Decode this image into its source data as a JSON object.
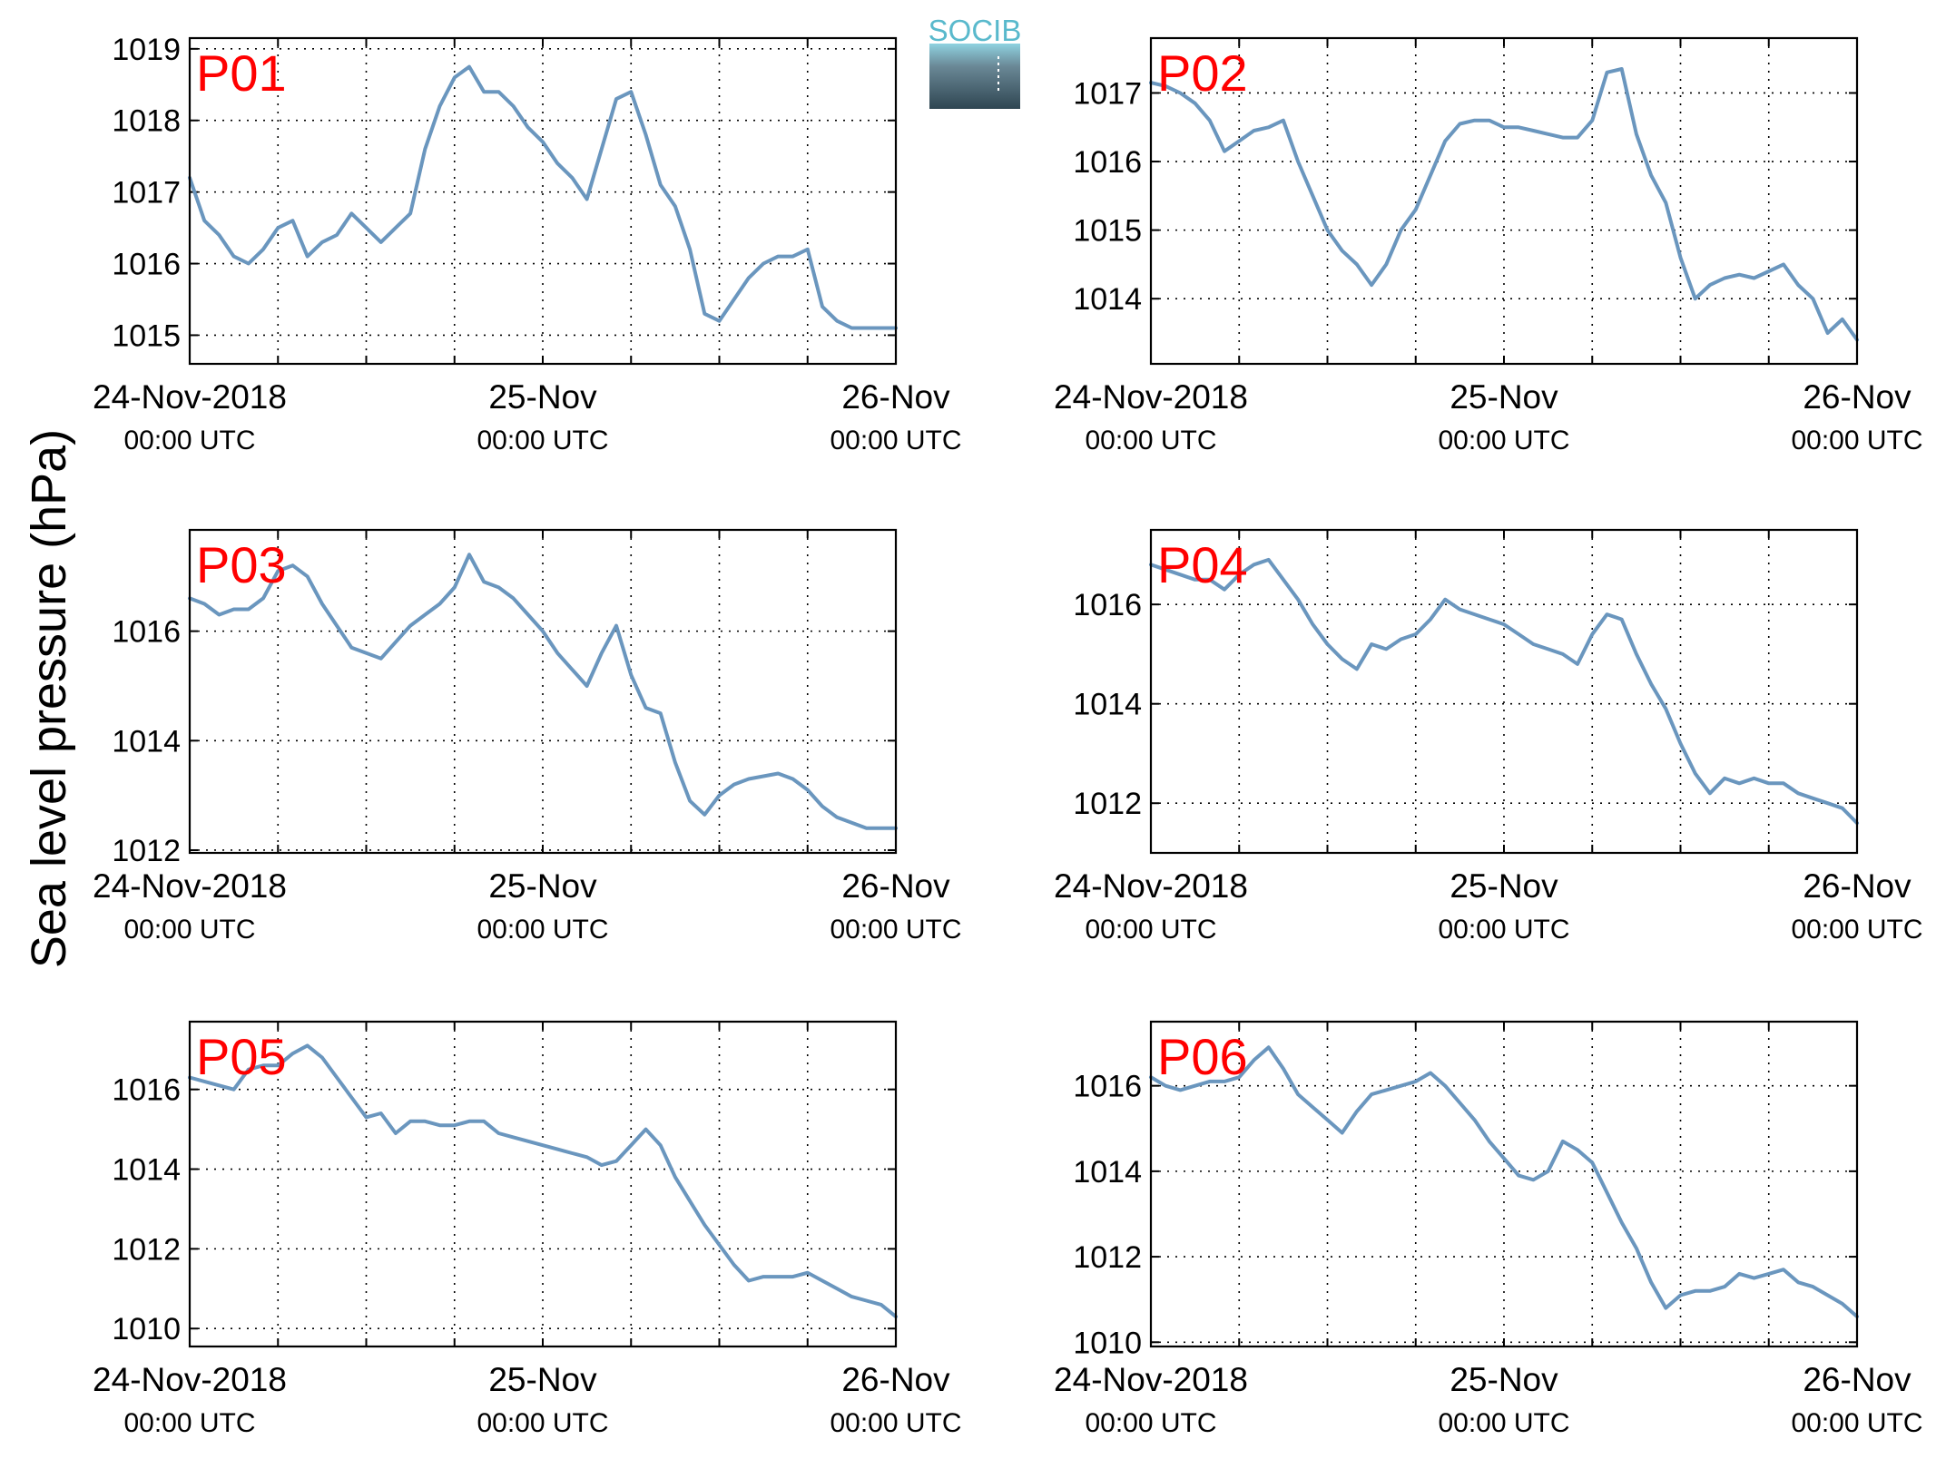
{
  "figure": {
    "ylabel": "Sea level pressure (hPa)",
    "logo_text": "SOCIB",
    "panel_label_color": "#ff0000",
    "line_color": "#6a96be"
  },
  "chart_data": [
    {
      "type": "line",
      "label": "P01",
      "x_unit": "hours since 24-Nov-2018 00:00 UTC",
      "xlim": [
        0,
        48
      ],
      "xticks": [
        {
          "pos": 0,
          "line1": "24-Nov-2018",
          "line2": "00:00 UTC"
        },
        {
          "pos": 24,
          "line1": "25-Nov",
          "line2": "00:00 UTC"
        },
        {
          "pos": 48,
          "line1": "26-Nov",
          "line2": "00:00 UTC"
        }
      ],
      "ylim": [
        1014.6,
        1019.15
      ],
      "yticks": [
        1015,
        1016,
        1017,
        1018,
        1019
      ],
      "grid": true,
      "x": [
        0,
        1,
        2,
        3,
        4,
        5,
        6,
        7,
        8,
        9,
        10,
        11,
        12,
        13,
        14,
        15,
        16,
        17,
        18,
        19,
        20,
        21,
        22,
        23,
        24,
        25,
        26,
        27,
        28,
        29,
        30,
        31,
        32,
        33,
        34,
        35,
        36,
        37,
        38,
        39,
        40,
        41,
        42,
        43,
        44,
        45,
        46,
        47,
        48
      ],
      "y": [
        1017.2,
        1016.6,
        1016.4,
        1016.1,
        1016.0,
        1016.2,
        1016.5,
        1016.6,
        1016.1,
        1016.3,
        1016.4,
        1016.7,
        1016.5,
        1016.3,
        1016.5,
        1016.7,
        1017.6,
        1018.2,
        1018.6,
        1018.75,
        1018.4,
        1018.4,
        1018.2,
        1017.9,
        1017.7,
        1017.4,
        1017.2,
        1016.9,
        1017.6,
        1018.3,
        1018.4,
        1017.8,
        1017.1,
        1016.8,
        1016.2,
        1015.3,
        1015.2,
        1015.5,
        1015.8,
        1016.0,
        1016.1,
        1016.1,
        1016.2,
        1015.4,
        1015.2,
        1015.1,
        1015.1,
        1015.1,
        1015.1
      ]
    },
    {
      "type": "line",
      "label": "P02",
      "x_unit": "hours since 24-Nov-2018 00:00 UTC",
      "xlim": [
        0,
        48
      ],
      "xticks": [
        {
          "pos": 0,
          "line1": "24-Nov-2018",
          "line2": "00:00 UTC"
        },
        {
          "pos": 24,
          "line1": "25-Nov",
          "line2": "00:00 UTC"
        },
        {
          "pos": 48,
          "line1": "26-Nov",
          "line2": "00:00 UTC"
        }
      ],
      "ylim": [
        1013.05,
        1017.8
      ],
      "yticks": [
        1014,
        1015,
        1016,
        1017
      ],
      "grid": true,
      "x": [
        0,
        1,
        2,
        3,
        4,
        5,
        6,
        7,
        8,
        9,
        10,
        11,
        12,
        13,
        14,
        15,
        16,
        17,
        18,
        19,
        20,
        21,
        22,
        23,
        24,
        25,
        26,
        27,
        28,
        29,
        30,
        31,
        32,
        33,
        34,
        35,
        36,
        37,
        38,
        39,
        40,
        41,
        42,
        43,
        44,
        45,
        46,
        47,
        48
      ],
      "y": [
        1017.15,
        1017.1,
        1017.0,
        1016.85,
        1016.6,
        1016.15,
        1016.3,
        1016.45,
        1016.5,
        1016.6,
        1016.0,
        1015.5,
        1015.0,
        1014.7,
        1014.5,
        1014.2,
        1014.5,
        1015.0,
        1015.3,
        1015.8,
        1016.3,
        1016.55,
        1016.6,
        1016.6,
        1016.5,
        1016.5,
        1016.45,
        1016.4,
        1016.35,
        1016.35,
        1016.6,
        1017.3,
        1017.35,
        1016.4,
        1015.8,
        1015.4,
        1014.6,
        1014.0,
        1014.2,
        1014.3,
        1014.35,
        1014.3,
        1014.4,
        1014.5,
        1014.2,
        1014.0,
        1013.5,
        1013.7,
        1013.4
      ]
    },
    {
      "type": "line",
      "label": "P03",
      "x_unit": "hours since 24-Nov-2018 00:00 UTC",
      "xlim": [
        0,
        48
      ],
      "xticks": [
        {
          "pos": 0,
          "line1": "24-Nov-2018",
          "line2": "00:00 UTC"
        },
        {
          "pos": 24,
          "line1": "25-Nov",
          "line2": "00:00 UTC"
        },
        {
          "pos": 48,
          "line1": "26-Nov",
          "line2": "00:00 UTC"
        }
      ],
      "ylim": [
        1011.95,
        1017.85
      ],
      "yticks": [
        1012,
        1014,
        1016
      ],
      "grid": true,
      "x": [
        0,
        1,
        2,
        3,
        4,
        5,
        6,
        7,
        8,
        9,
        10,
        11,
        12,
        13,
        14,
        15,
        16,
        17,
        18,
        19,
        20,
        21,
        22,
        23,
        24,
        25,
        26,
        27,
        28,
        29,
        30,
        31,
        32,
        33,
        34,
        35,
        36,
        37,
        38,
        39,
        40,
        41,
        42,
        43,
        44,
        45,
        46,
        47,
        48
      ],
      "y": [
        1016.6,
        1016.5,
        1016.3,
        1016.4,
        1016.4,
        1016.6,
        1017.1,
        1017.2,
        1017.0,
        1016.5,
        1016.1,
        1015.7,
        1015.6,
        1015.5,
        1015.8,
        1016.1,
        1016.3,
        1016.5,
        1016.8,
        1017.4,
        1016.9,
        1016.8,
        1016.6,
        1016.3,
        1016.0,
        1015.6,
        1015.3,
        1015.0,
        1015.6,
        1016.1,
        1015.2,
        1014.6,
        1014.5,
        1013.6,
        1012.9,
        1012.65,
        1013.0,
        1013.2,
        1013.3,
        1013.35,
        1013.4,
        1013.3,
        1013.1,
        1012.8,
        1012.6,
        1012.5,
        1012.4,
        1012.4,
        1012.4
      ]
    },
    {
      "type": "line",
      "label": "P04",
      "x_unit": "hours since 24-Nov-2018 00:00 UTC",
      "xlim": [
        0,
        48
      ],
      "xticks": [
        {
          "pos": 0,
          "line1": "24-Nov-2018",
          "line2": "00:00 UTC"
        },
        {
          "pos": 24,
          "line1": "25-Nov",
          "line2": "00:00 UTC"
        },
        {
          "pos": 48,
          "line1": "26-Nov",
          "line2": "00:00 UTC"
        }
      ],
      "ylim": [
        1011.0,
        1017.5
      ],
      "yticks": [
        1012,
        1014,
        1016
      ],
      "grid": true,
      "x": [
        0,
        1,
        2,
        3,
        4,
        5,
        6,
        7,
        8,
        9,
        10,
        11,
        12,
        13,
        14,
        15,
        16,
        17,
        18,
        19,
        20,
        21,
        22,
        23,
        24,
        25,
        26,
        27,
        28,
        29,
        30,
        31,
        32,
        33,
        34,
        35,
        36,
        37,
        38,
        39,
        40,
        41,
        42,
        43,
        44,
        45,
        46,
        47,
        48
      ],
      "y": [
        1016.8,
        1016.7,
        1016.6,
        1016.5,
        1016.5,
        1016.3,
        1016.6,
        1016.8,
        1016.9,
        1016.5,
        1016.1,
        1015.6,
        1015.2,
        1014.9,
        1014.7,
        1015.2,
        1015.1,
        1015.3,
        1015.4,
        1015.7,
        1016.1,
        1015.9,
        1015.8,
        1015.7,
        1015.6,
        1015.4,
        1015.2,
        1015.1,
        1015.0,
        1014.8,
        1015.4,
        1015.8,
        1015.7,
        1015.0,
        1014.4,
        1013.9,
        1013.2,
        1012.6,
        1012.2,
        1012.5,
        1012.4,
        1012.5,
        1012.4,
        1012.4,
        1012.2,
        1012.1,
        1012.0,
        1011.9,
        1011.6
      ]
    },
    {
      "type": "line",
      "label": "P05",
      "x_unit": "hours since 24-Nov-2018 00:00 UTC",
      "xlim": [
        0,
        48
      ],
      "xticks": [
        {
          "pos": 0,
          "line1": "24-Nov-2018",
          "line2": "00:00 UTC"
        },
        {
          "pos": 24,
          "line1": "25-Nov",
          "line2": "00:00 UTC"
        },
        {
          "pos": 48,
          "line1": "26-Nov",
          "line2": "00:00 UTC"
        }
      ],
      "ylim": [
        1009.55,
        1017.7
      ],
      "yticks": [
        1010,
        1012,
        1014,
        1016
      ],
      "grid": true,
      "x": [
        0,
        1,
        2,
        3,
        4,
        5,
        6,
        7,
        8,
        9,
        10,
        11,
        12,
        13,
        14,
        15,
        16,
        17,
        18,
        19,
        20,
        21,
        22,
        23,
        24,
        25,
        26,
        27,
        28,
        29,
        30,
        31,
        32,
        33,
        34,
        35,
        36,
        37,
        38,
        39,
        40,
        41,
        42,
        43,
        44,
        45,
        46,
        47,
        48
      ],
      "y": [
        1016.3,
        1016.2,
        1016.1,
        1016.0,
        1016.5,
        1016.6,
        1016.6,
        1016.9,
        1017.1,
        1016.8,
        1016.3,
        1015.8,
        1015.3,
        1015.4,
        1014.9,
        1015.2,
        1015.2,
        1015.1,
        1015.1,
        1015.2,
        1015.2,
        1014.9,
        1014.8,
        1014.7,
        1014.6,
        1014.5,
        1014.4,
        1014.3,
        1014.1,
        1014.2,
        1014.6,
        1015.0,
        1014.6,
        1013.8,
        1013.2,
        1012.6,
        1012.1,
        1011.6,
        1011.2,
        1011.3,
        1011.3,
        1011.3,
        1011.4,
        1011.2,
        1011.0,
        1010.8,
        1010.7,
        1010.6,
        1010.3
      ]
    },
    {
      "type": "line",
      "label": "P06",
      "x_unit": "hours since 24-Nov-2018 00:00 UTC",
      "xlim": [
        0,
        48
      ],
      "xticks": [
        {
          "pos": 0,
          "line1": "24-Nov-2018",
          "line2": "00:00 UTC"
        },
        {
          "pos": 24,
          "line1": "25-Nov",
          "line2": "00:00 UTC"
        },
        {
          "pos": 48,
          "line1": "26-Nov",
          "line2": "00:00 UTC"
        }
      ],
      "ylim": [
        1009.9,
        1017.5
      ],
      "yticks": [
        1010,
        1012,
        1014,
        1016
      ],
      "grid": true,
      "x": [
        0,
        1,
        2,
        3,
        4,
        5,
        6,
        7,
        8,
        9,
        10,
        11,
        12,
        13,
        14,
        15,
        16,
        17,
        18,
        19,
        20,
        21,
        22,
        23,
        24,
        25,
        26,
        27,
        28,
        29,
        30,
        31,
        32,
        33,
        34,
        35,
        36,
        37,
        38,
        39,
        40,
        41,
        42,
        43,
        44,
        45,
        46,
        47,
        48
      ],
      "y": [
        1016.2,
        1016.0,
        1015.9,
        1016.0,
        1016.1,
        1016.1,
        1016.2,
        1016.6,
        1016.9,
        1016.4,
        1015.8,
        1015.5,
        1015.2,
        1014.9,
        1015.4,
        1015.8,
        1015.9,
        1016.0,
        1016.1,
        1016.3,
        1016.0,
        1015.6,
        1015.2,
        1014.7,
        1014.3,
        1013.9,
        1013.8,
        1014.0,
        1014.7,
        1014.5,
        1014.2,
        1013.5,
        1012.8,
        1012.2,
        1011.4,
        1010.8,
        1011.1,
        1011.2,
        1011.2,
        1011.3,
        1011.6,
        1011.5,
        1011.6,
        1011.7,
        1011.4,
        1011.3,
        1011.1,
        1010.9,
        1010.6
      ]
    }
  ]
}
